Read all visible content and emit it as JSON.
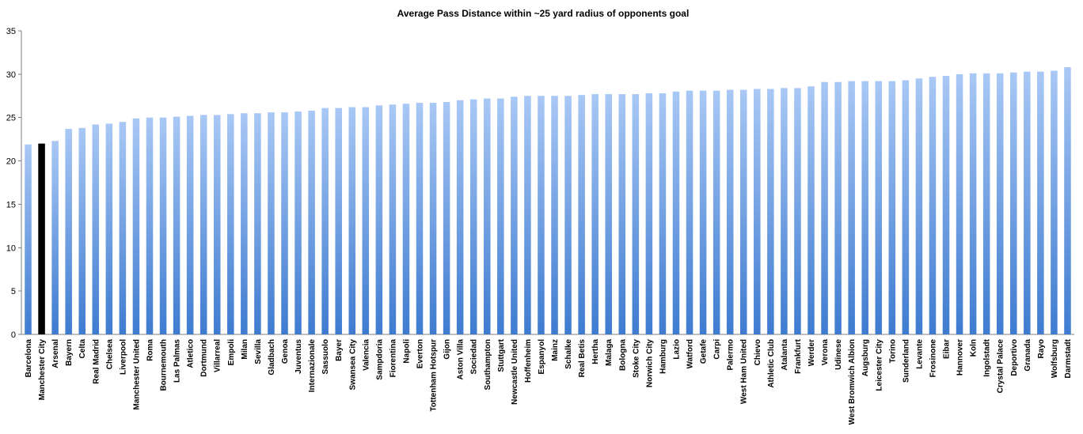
{
  "chart_data": {
    "type": "bar",
    "title": "Average Pass Distance within ~25 yard radius of opponents goal",
    "xlabel": "",
    "ylabel": "",
    "ylim": [
      0,
      35
    ],
    "yticks": [
      0,
      5,
      10,
      15,
      20,
      25,
      30,
      35
    ],
    "grid": false,
    "legend": "none",
    "colors": {
      "bar_top": "#a9c8f5",
      "bar_bottom": "#3e7bd0",
      "highlight": "#000000"
    },
    "highlight": "Manchester City",
    "categories": [
      "Barcelona",
      "Manchester City",
      "Arsenal",
      "Bayern",
      "Celta",
      "Real Madrid",
      "Chelsea",
      "Liverpool",
      "Manchester United",
      "Roma",
      "Bournemouth",
      "Las Palmas",
      "Atletico",
      "Dortmund",
      "Villarreal",
      "Empoli",
      "Milan",
      "Sevilla",
      "Gladbach",
      "Genoa",
      "Juventus",
      "Internazionale",
      "Sassuolo",
      "Bayer",
      "Swansea City",
      "Valencia",
      "Sampdoria",
      "Fiorentina",
      "Napoli",
      "Everton",
      "Tottenham Hotspur",
      "Gijon",
      "Aston Villa",
      "Sociedad",
      "Southampton",
      "Stuttgart",
      "Newcastle United",
      "Hoffenheim",
      "Espanyol",
      "Mainz",
      "Schalke",
      "Real Betis",
      "Hertha",
      "Malaga",
      "Bologna",
      "Stoke City",
      "Norwich City",
      "Hamburg",
      "Lazio",
      "Watford",
      "Getafe",
      "Carpi",
      "Palermo",
      "West Ham United",
      "Chievo",
      "Athletic Club",
      "Atalanta",
      "Frankfurt",
      "Werder",
      "Verona",
      "Udinese",
      "West Bromwich Albion",
      "Augsburg",
      "Leicester City",
      "Torino",
      "Sunderland",
      "Levante",
      "Frosinone",
      "Eibar",
      "Hannover",
      "Koln",
      "Ingolstadt",
      "Crystal Palace",
      "Deportivo",
      "Granada",
      "Rayo",
      "Wolfsburg",
      "Darmstadt"
    ],
    "values": [
      21.9,
      22.0,
      22.3,
      23.7,
      23.8,
      24.2,
      24.3,
      24.5,
      24.9,
      25.0,
      25.0,
      25.1,
      25.2,
      25.3,
      25.3,
      25.4,
      25.5,
      25.5,
      25.6,
      25.6,
      25.7,
      25.8,
      26.1,
      26.1,
      26.2,
      26.2,
      26.4,
      26.5,
      26.6,
      26.7,
      26.7,
      26.8,
      27.0,
      27.1,
      27.2,
      27.2,
      27.4,
      27.5,
      27.5,
      27.5,
      27.5,
      27.6,
      27.7,
      27.7,
      27.7,
      27.7,
      27.8,
      27.8,
      28.0,
      28.1,
      28.1,
      28.1,
      28.2,
      28.2,
      28.3,
      28.3,
      28.4,
      28.4,
      28.6,
      29.1,
      29.1,
      29.2,
      29.2,
      29.2,
      29.2,
      29.3,
      29.5,
      29.7,
      29.8,
      30.0,
      30.1,
      30.1,
      30.1,
      30.2,
      30.3,
      30.3,
      30.4,
      30.8
    ]
  }
}
